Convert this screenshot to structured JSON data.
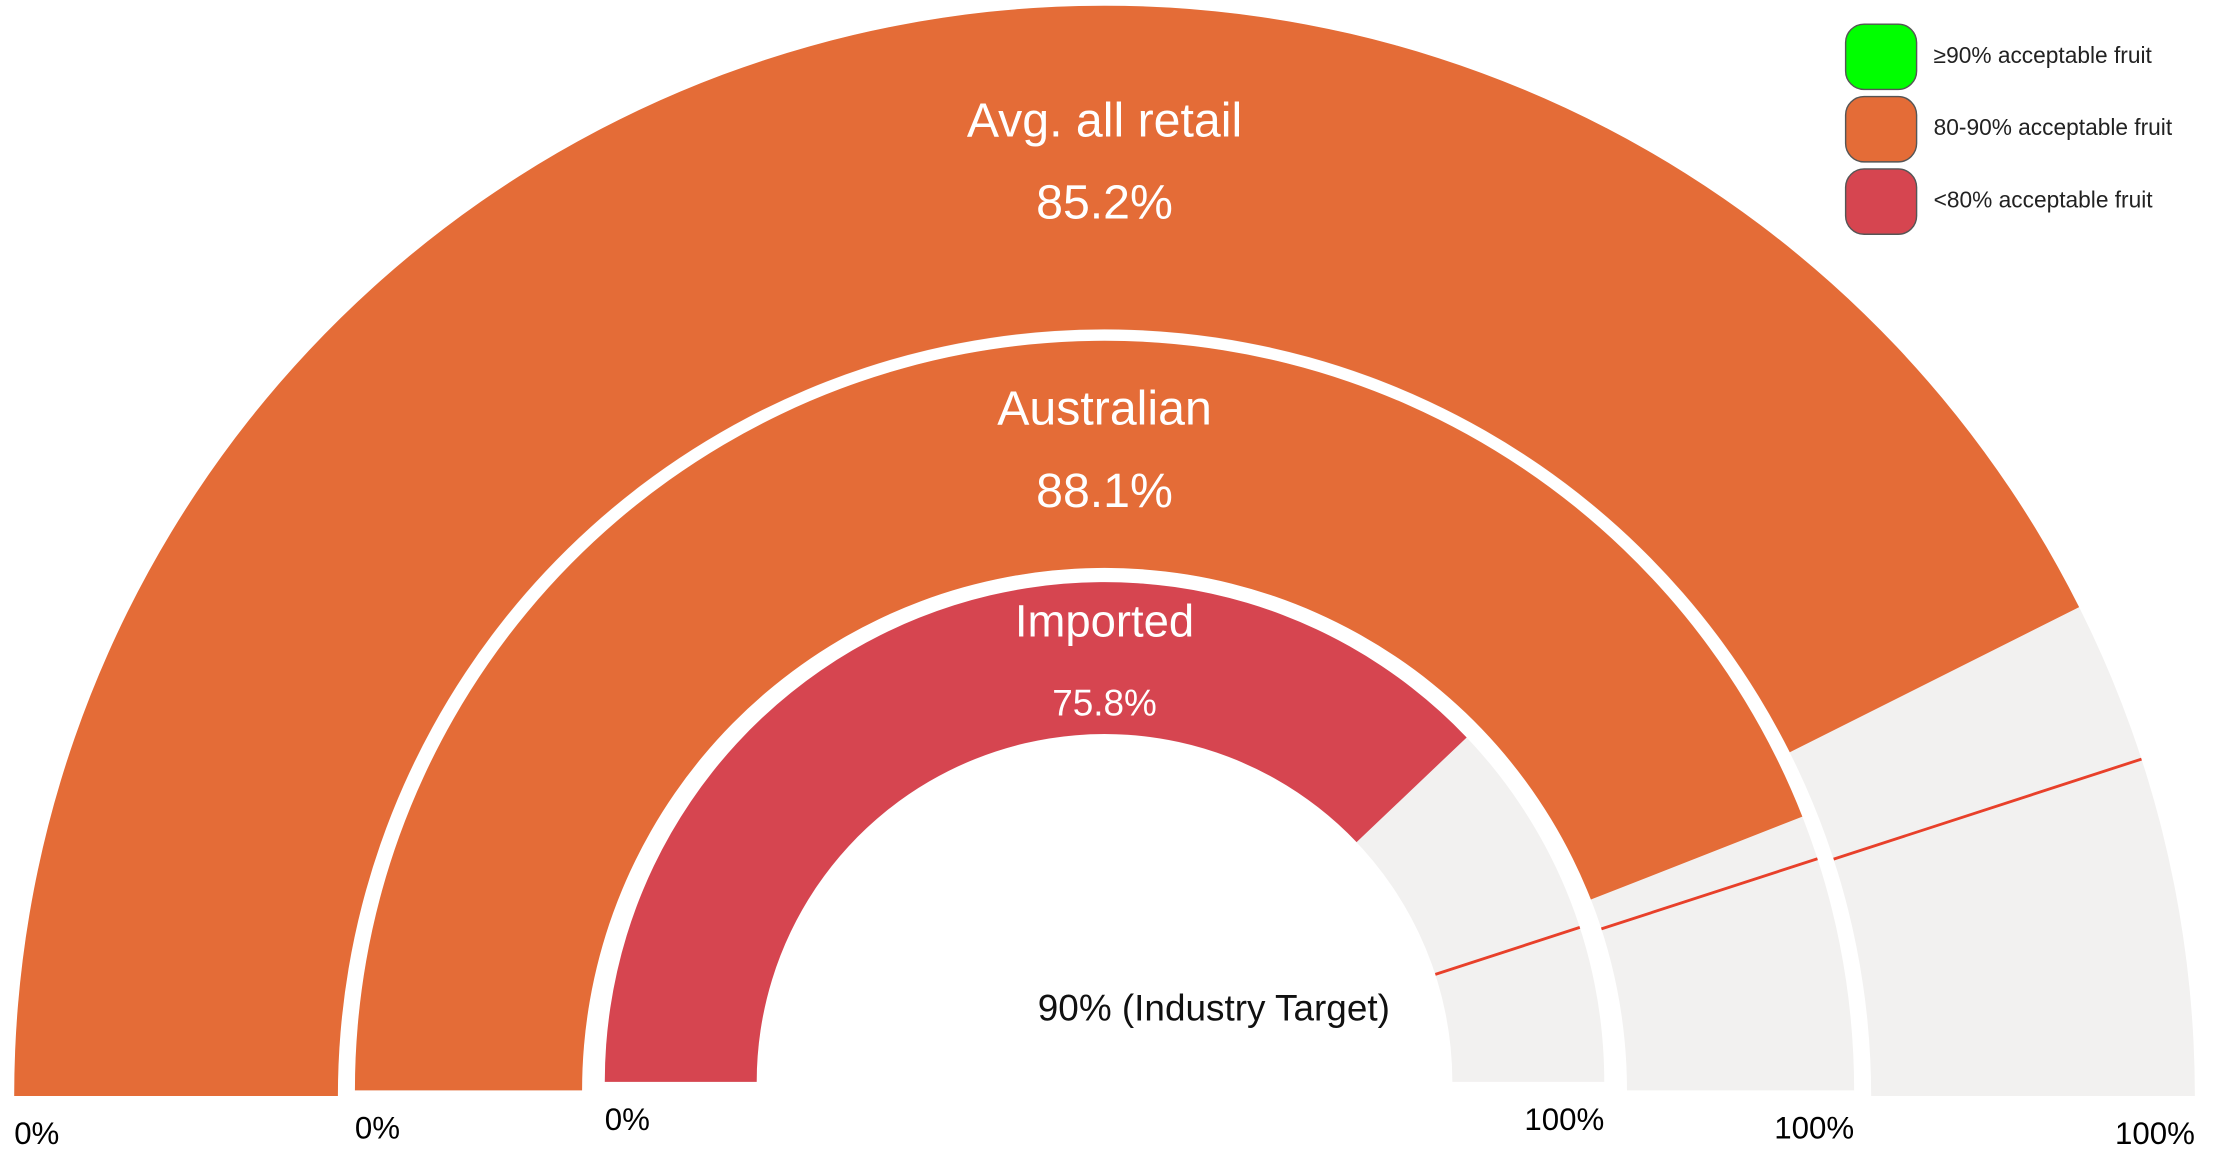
{
  "chart_data": {
    "type": "gauge",
    "gauges": [
      {
        "name": "Avg. all retail",
        "value": 85.2,
        "value_label": "85.2%",
        "color": "#E46C37",
        "lim": [
          0,
          100
        ],
        "ticks": [
          {
            "value": 0,
            "label": "0%"
          },
          {
            "value": 100,
            "label": "100%"
          }
        ]
      },
      {
        "name": "Australian",
        "value": 88.1,
        "value_label": "88.1%",
        "color": "#E46C37",
        "lim": [
          0,
          100
        ],
        "ticks": [
          {
            "value": 0,
            "label": "0%"
          },
          {
            "value": 100,
            "label": "100%"
          }
        ]
      },
      {
        "name": "Imported",
        "value": 75.8,
        "value_label": "75.8%",
        "color": "#D64550",
        "lim": [
          0,
          100
        ],
        "ticks": [
          {
            "value": 0,
            "label": "0%"
          },
          {
            "value": 100,
            "label": "100%"
          }
        ]
      }
    ],
    "target": {
      "value": 90,
      "label": "90% (Industry Target)",
      "color": "#E8402A"
    },
    "legend": [
      {
        "name": "≥90% acceptable fruit",
        "color": "#00FF00"
      },
      {
        "name": "80-90% acceptable fruit",
        "color": "#E46C37"
      },
      {
        "name": "<80% acceptable fruit",
        "color": "#D64550"
      }
    ]
  }
}
